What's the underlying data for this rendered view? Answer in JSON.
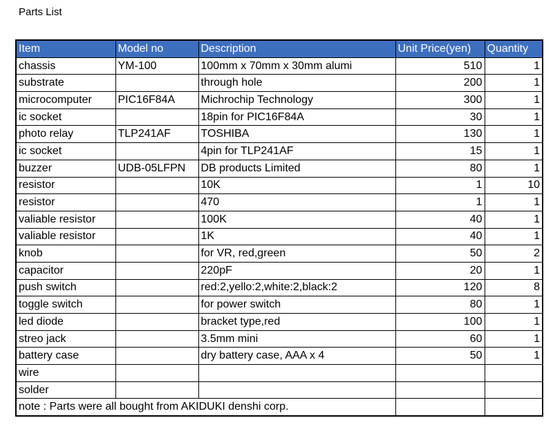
{
  "title": "Parts List",
  "table": {
    "header": [
      "Item",
      "Model no",
      "Description",
      "Unit Price(yen)",
      "Quantity"
    ],
    "rows": [
      [
        "chassis",
        "YM-100",
        "100mm x 70mm x 30mm alumi",
        510,
        1
      ],
      [
        "substrate",
        null,
        "through hole",
        200,
        1
      ],
      [
        "microcomputer",
        "PIC16F84A",
        "Michrochip Technology",
        300,
        1
      ],
      [
        "ic socket",
        null,
        "18pin for PIC16F84A",
        30,
        1
      ],
      [
        "photo relay",
        "TLP241AF",
        "TOSHIBA",
        130,
        1
      ],
      [
        "ic socket",
        null,
        "4pin for TLP241AF",
        15,
        1
      ],
      [
        "buzzer",
        "UDB-05LFPN",
        "DB products Limited",
        80,
        1
      ],
      [
        "resistor",
        null,
        "10K",
        1,
        10
      ],
      [
        "resistor",
        null,
        "470",
        1,
        1
      ],
      [
        "valiable resistor",
        null,
        "100K",
        40,
        1
      ],
      [
        "valiable resistor",
        null,
        "1K",
        40,
        1
      ],
      [
        "knob",
        null,
        "for VR, red,green",
        50,
        2
      ],
      [
        "capacitor",
        null,
        "220pF",
        20,
        1
      ],
      [
        "push switch",
        null,
        "red:2,yello:2,white:2,black:2",
        120,
        8
      ],
      [
        "toggle switch",
        null,
        "for power switch",
        80,
        1
      ],
      [
        "led diode",
        null,
        "bracket type,red",
        100,
        1
      ],
      [
        "streo jack",
        null,
        "3.5mm mini",
        60,
        1
      ],
      [
        "battery case",
        null,
        "dry battery case, AAA x 4",
        50,
        1
      ],
      [
        "wire",
        null,
        null,
        null,
        null
      ],
      [
        "solder",
        null,
        null,
        null,
        null
      ]
    ],
    "note": "note : Parts were all bought from AKIDUKI denshi corp."
  }
}
